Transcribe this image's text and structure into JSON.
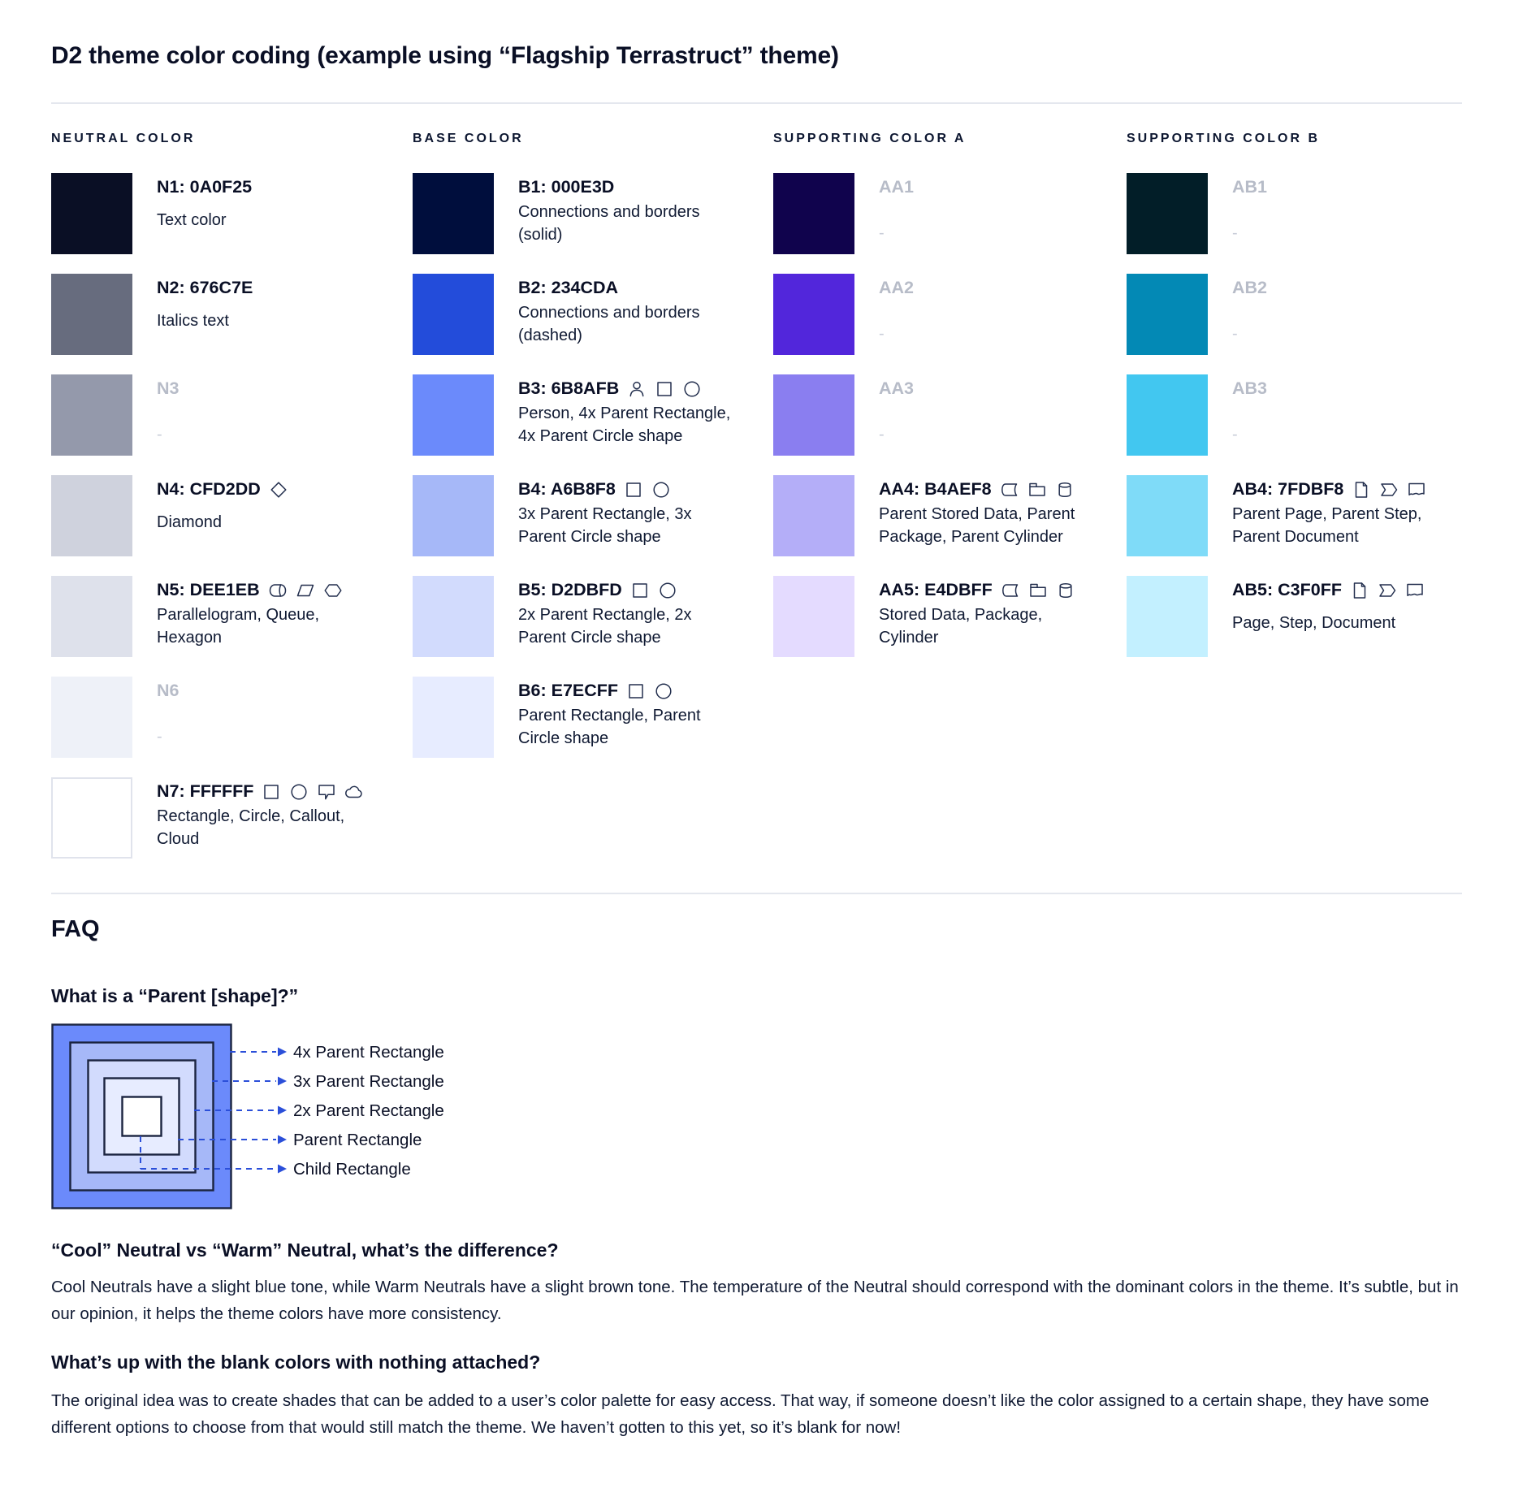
{
  "page": {
    "title": "D2 theme color coding (example using “Flagship Terrastruct” theme)"
  },
  "colors": {
    "text": "#0A0F25",
    "muted_label": "#B7BCC8",
    "divider": "#E4E7EE",
    "dashed_arrow": "#2B4FD9"
  },
  "columns": [
    {
      "header": "NEUTRAL COLOR",
      "entries": [
        {
          "title": "N1: 0A0F25",
          "swatch": "#0A0F25",
          "desc": "Text color",
          "icons": [],
          "muted": false
        },
        {
          "title": "N2: 676C7E",
          "swatch": "#676C7E",
          "desc": "Italics text",
          "icons": [],
          "muted": false
        },
        {
          "title": "N3",
          "swatch": "#9499AB",
          "desc": "-",
          "icons": [],
          "muted": true
        },
        {
          "title": "N4: CFD2DD",
          "swatch": "#CFD2DD",
          "desc": "Diamond",
          "icons": [
            "diamond-icon"
          ],
          "muted": false
        },
        {
          "title": "N5: DEE1EB",
          "swatch": "#DEE1EB",
          "desc": "Parallelogram, Queue, Hexagon",
          "icons": [
            "queue-icon",
            "parallelogram-icon",
            "hexagon-icon"
          ],
          "muted": false
        },
        {
          "title": "N6",
          "swatch": "#EEF1F8",
          "desc": "-",
          "icons": [],
          "muted": true
        },
        {
          "title": "N7: FFFFFF",
          "swatch": "#FFFFFF",
          "desc": "Rectangle, Circle, Callout, Cloud",
          "icons": [
            "rectangle-icon",
            "circle-icon",
            "callout-icon",
            "cloud-icon"
          ],
          "muted": false,
          "swatch_border": true
        }
      ]
    },
    {
      "header": "BASE COLOR",
      "entries": [
        {
          "title": "B1: 000E3D",
          "swatch": "#000E3D",
          "desc": "Connections and borders (solid)",
          "icons": [],
          "muted": false
        },
        {
          "title": "B2: 234CDA",
          "swatch": "#234CDA",
          "desc": "Connections and borders (dashed)",
          "icons": [],
          "muted": false
        },
        {
          "title": "B3: 6B8AFB",
          "swatch": "#6B8AFB",
          "desc": "Person, 4x Parent Rectangle, 4x Parent Circle shape",
          "icons": [
            "person-icon",
            "rectangle-icon",
            "circle-icon"
          ],
          "muted": false
        },
        {
          "title": "B4: A6B8F8",
          "swatch": "#A6B8F8",
          "desc": "3x Parent Rectangle, 3x Parent Circle shape",
          "icons": [
            "rectangle-icon",
            "circle-icon"
          ],
          "muted": false
        },
        {
          "title": "B5: D2DBFD",
          "swatch": "#D2DBFD",
          "desc": "2x Parent Rectangle, 2x Parent Circle shape",
          "icons": [
            "rectangle-icon",
            "circle-icon"
          ],
          "muted": false
        },
        {
          "title": "B6: E7ECFF",
          "swatch": "#E7ECFF",
          "desc": "Parent Rectangle, Parent Circle shape",
          "icons": [
            "rectangle-icon",
            "circle-icon"
          ],
          "muted": false
        }
      ]
    },
    {
      "header": "SUPPORTING COLOR A",
      "entries": [
        {
          "title": "AA1",
          "swatch": "#10034D",
          "desc": "-",
          "icons": [],
          "muted": true
        },
        {
          "title": "AA2",
          "swatch": "#5226DB",
          "desc": "-",
          "icons": [],
          "muted": true
        },
        {
          "title": "AA3",
          "swatch": "#8A7EF0",
          "desc": "-",
          "icons": [],
          "muted": true
        },
        {
          "title": "AA4: B4AEF8",
          "swatch": "#B4AEF8",
          "desc": "Parent Stored Data, Parent Package, Parent Cylinder",
          "icons": [
            "stored-data-icon",
            "package-icon",
            "cylinder-icon"
          ],
          "muted": false
        },
        {
          "title": "AA5: E4DBFF",
          "swatch": "#E4DBFF",
          "desc": "Stored Data, Package, Cylinder",
          "icons": [
            "stored-data-icon",
            "package-icon",
            "cylinder-icon"
          ],
          "muted": false
        }
      ]
    },
    {
      "header": "SUPPORTING COLOR B",
      "entries": [
        {
          "title": "AB1",
          "swatch": "#021E28",
          "desc": "-",
          "icons": [],
          "muted": true
        },
        {
          "title": "AB2",
          "swatch": "#0389B5",
          "desc": "-",
          "icons": [],
          "muted": true
        },
        {
          "title": "AB3",
          "swatch": "#42C7F0",
          "desc": "-",
          "icons": [],
          "muted": true
        },
        {
          "title": "AB4: 7FDBF8",
          "swatch": "#7FDBF8",
          "desc": "Parent Page, Parent Step, Parent Document",
          "icons": [
            "page-icon",
            "step-icon",
            "document-icon"
          ],
          "muted": false
        },
        {
          "title": "AB5: C3F0FF",
          "swatch": "#C3F0FF",
          "desc": "Page, Step, Document",
          "icons": [
            "page-icon",
            "step-icon",
            "document-icon"
          ],
          "muted": false
        }
      ]
    }
  ],
  "faq": {
    "heading": "FAQ",
    "q1": "What is a “Parent [shape]?”",
    "diagram": {
      "levels": [
        {
          "label": "4x Parent Rectangle",
          "color": "#6B8AFB"
        },
        {
          "label": "3x Parent Rectangle",
          "color": "#A6B8F8"
        },
        {
          "label": "2x Parent Rectangle",
          "color": "#D2DBFD"
        },
        {
          "label": "Parent Rectangle",
          "color": "#E7ECFF"
        },
        {
          "label": "Child Rectangle",
          "color": "#FFFFFF"
        }
      ]
    },
    "q2": "“Cool” Neutral vs “Warm” Neutral, what’s the difference?",
    "a2": "Cool Neutrals have a slight blue tone, while Warm Neutrals have a slight brown tone. The temperature of the Neutral should correspond with the dominant colors in the theme. It’s subtle, but in our opinion, it helps the theme colors have more consistency.",
    "q3": "What’s up with the blank colors with nothing attached?",
    "a3": "The original idea was to create shades that can be added to a user’s color palette for easy access. That way, if someone doesn’t like the color assigned to a certain shape, they have some different options to choose from that would still match the theme. We haven’t gotten to this yet, so it’s blank for now!"
  }
}
